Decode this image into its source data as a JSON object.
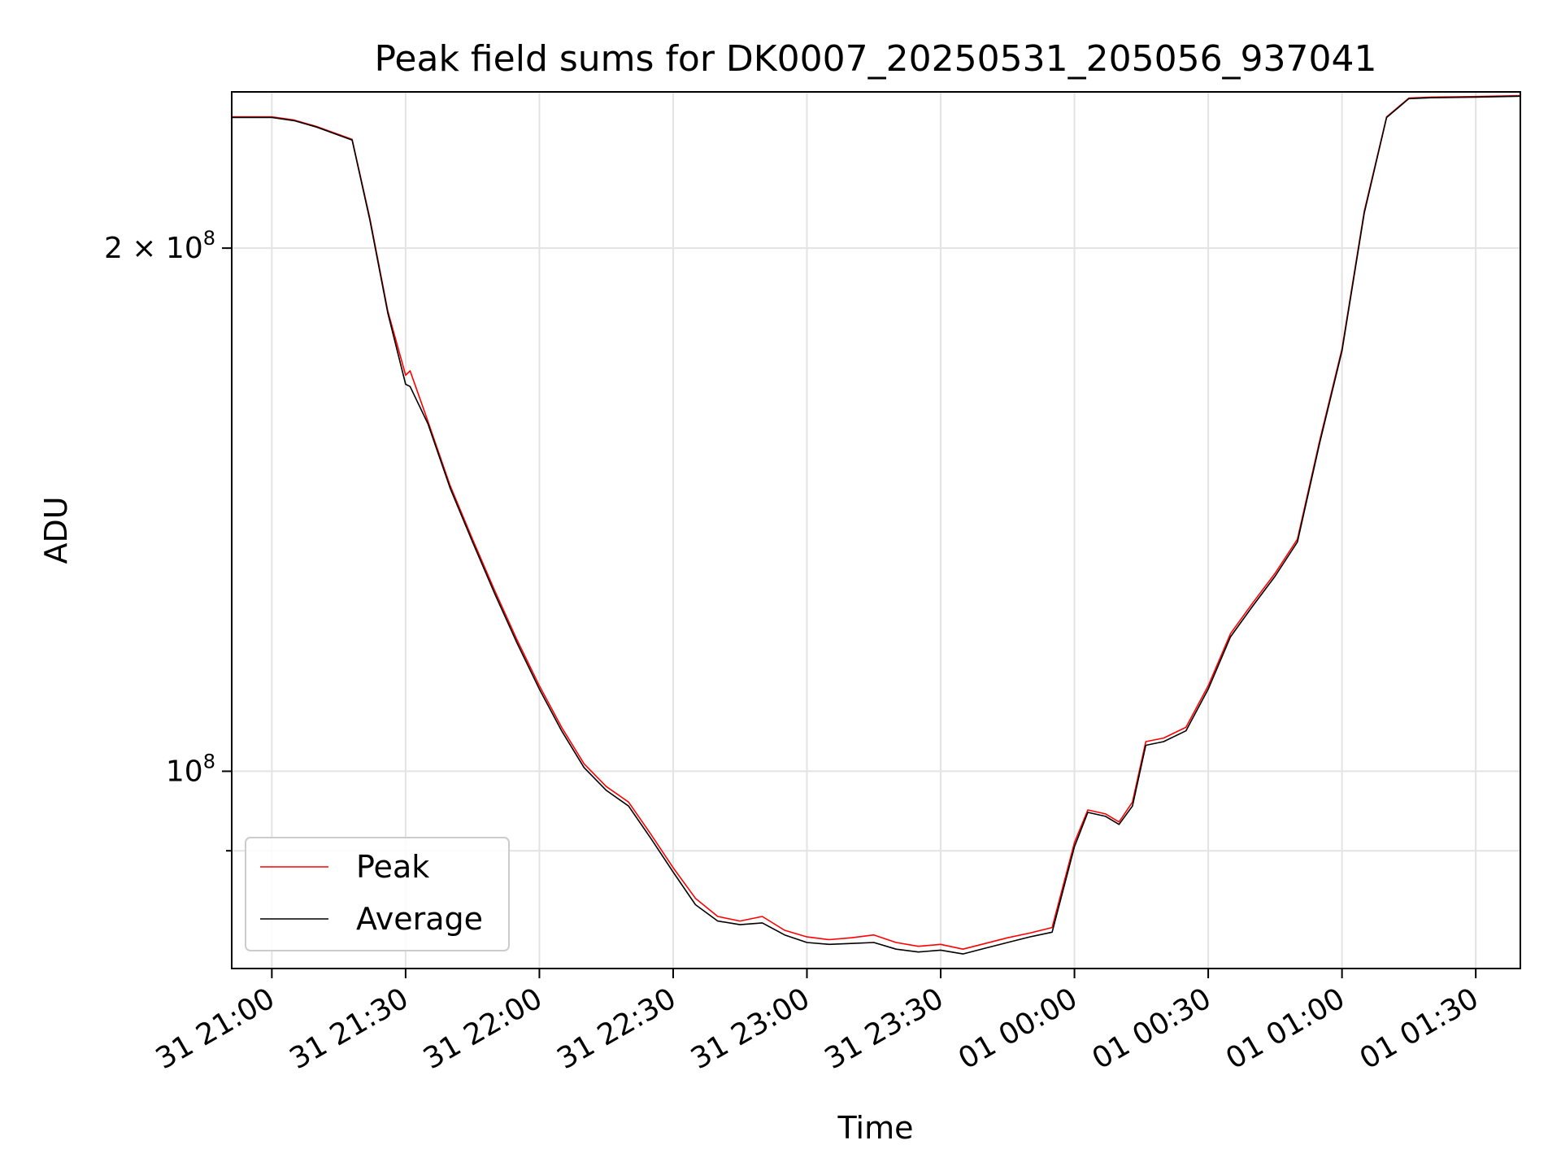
{
  "chart_data": {
    "type": "line",
    "title": "Peak field sums for DK0007_20250531_205056_937041",
    "xlabel": "Time",
    "ylabel": "ADU",
    "y_scale": "log",
    "xlim": [
      "2025-05-31 20:51",
      "2025-06-01 01:40"
    ],
    "ylim": [
      77000000,
      246000000
    ],
    "grid": true,
    "legend_position": "lower left",
    "x_ticks": [
      "31 21:00",
      "31 21:30",
      "31 22:00",
      "31 22:30",
      "31 23:00",
      "31 23:30",
      "01 00:00",
      "01 00:30",
      "01 01:00",
      "01 01:30"
    ],
    "y_ticks": [
      {
        "value": 100000000,
        "base": "10",
        "exp": "8",
        "coef": ""
      },
      {
        "value": 200000000,
        "base": "10",
        "exp": "8",
        "coef": "2 × "
      }
    ],
    "y_minor_ticks": [
      90000000
    ],
    "series": [
      {
        "name": "Peak",
        "color": "#ff0000",
        "x": [
          "2025-05-31 20:51",
          "2025-05-31 21:00",
          "2025-05-31 21:05",
          "2025-05-31 21:10",
          "2025-05-31 21:15",
          "2025-05-31 21:18",
          "2025-05-31 21:22",
          "2025-05-31 21:26",
          "2025-05-31 21:30",
          "2025-05-31 21:31",
          "2025-05-31 21:35",
          "2025-05-31 21:40",
          "2025-05-31 21:45",
          "2025-05-31 21:50",
          "2025-05-31 21:55",
          "2025-05-31 22:00",
          "2025-05-31 22:05",
          "2025-05-31 22:10",
          "2025-05-31 22:15",
          "2025-05-31 22:20",
          "2025-05-31 22:25",
          "2025-05-31 22:30",
          "2025-05-31 22:35",
          "2025-05-31 22:40",
          "2025-05-31 22:45",
          "2025-05-31 22:50",
          "2025-05-31 22:55",
          "2025-05-31 23:00",
          "2025-05-31 23:05",
          "2025-05-31 23:10",
          "2025-05-31 23:15",
          "2025-05-31 23:20",
          "2025-05-31 23:25",
          "2025-05-31 23:30",
          "2025-05-31 23:35",
          "2025-05-31 23:40",
          "2025-05-31 23:45",
          "2025-05-31 23:50",
          "2025-05-31 23:55",
          "2025-06-01 00:00",
          "2025-06-01 00:03",
          "2025-06-01 00:07",
          "2025-06-01 00:10",
          "2025-06-01 00:13",
          "2025-06-01 00:16",
          "2025-06-01 00:20",
          "2025-06-01 00:25",
          "2025-06-01 00:30",
          "2025-06-01 00:35",
          "2025-06-01 00:40",
          "2025-06-01 00:45",
          "2025-06-01 00:50",
          "2025-06-01 00:55",
          "2025-06-01 01:00",
          "2025-06-01 01:05",
          "2025-06-01 01:10",
          "2025-06-01 01:15",
          "2025-06-01 01:20",
          "2025-06-01 01:30",
          "2025-06-01 01:40"
        ],
        "y": [
          238000000,
          238000000,
          237000000,
          235000000,
          232500000,
          231000000,
          208000000,
          184000000,
          169000000,
          170000000,
          159000000,
          146000000,
          136000000,
          127000000,
          119000000,
          112000000,
          106000000,
          101000000,
          98000000,
          96000000,
          92000000,
          88000000,
          84500000,
          82500000,
          82000000,
          82500000,
          81000000,
          80300000,
          80000000,
          80200000,
          80500000,
          79700000,
          79300000,
          79500000,
          79000000,
          79600000,
          80200000,
          80700000,
          81300000,
          91000000,
          95000000,
          94500000,
          93500000,
          96000000,
          104000000,
          104500000,
          106000000,
          112000000,
          120000000,
          125000000,
          130000000,
          136000000,
          155000000,
          175000000,
          210000000,
          238000000,
          244000000,
          244300000,
          244500000,
          244800000
        ]
      },
      {
        "name": "Average",
        "color": "#000000",
        "x": [
          "2025-05-31 20:51",
          "2025-05-31 21:00",
          "2025-05-31 21:05",
          "2025-05-31 21:10",
          "2025-05-31 21:15",
          "2025-05-31 21:18",
          "2025-05-31 21:22",
          "2025-05-31 21:26",
          "2025-05-31 21:30",
          "2025-05-31 21:31",
          "2025-05-31 21:35",
          "2025-05-31 21:40",
          "2025-05-31 21:45",
          "2025-05-31 21:50",
          "2025-05-31 21:55",
          "2025-05-31 22:00",
          "2025-05-31 22:05",
          "2025-05-31 22:10",
          "2025-05-31 22:15",
          "2025-05-31 22:20",
          "2025-05-31 22:25",
          "2025-05-31 22:30",
          "2025-05-31 22:35",
          "2025-05-31 22:40",
          "2025-05-31 22:45",
          "2025-05-31 22:50",
          "2025-05-31 22:55",
          "2025-05-31 23:00",
          "2025-05-31 23:05",
          "2025-05-31 23:10",
          "2025-05-31 23:15",
          "2025-05-31 23:20",
          "2025-05-31 23:25",
          "2025-05-31 23:30",
          "2025-05-31 23:35",
          "2025-05-31 23:40",
          "2025-05-31 23:45",
          "2025-05-31 23:50",
          "2025-05-31 23:55",
          "2025-06-01 00:00",
          "2025-06-01 00:03",
          "2025-06-01 00:07",
          "2025-06-01 00:10",
          "2025-06-01 00:13",
          "2025-06-01 00:16",
          "2025-06-01 00:20",
          "2025-06-01 00:25",
          "2025-06-01 00:30",
          "2025-06-01 00:35",
          "2025-06-01 00:40",
          "2025-06-01 00:45",
          "2025-06-01 00:50",
          "2025-06-01 00:55",
          "2025-06-01 01:00",
          "2025-06-01 01:05",
          "2025-06-01 01:10",
          "2025-06-01 01:15",
          "2025-06-01 01:20",
          "2025-06-01 01:30",
          "2025-06-01 01:40"
        ],
        "y": [
          237800000,
          237800000,
          236800000,
          234800000,
          232300000,
          230800000,
          207500000,
          183500000,
          167000000,
          166500000,
          158500000,
          145500000,
          135500000,
          126500000,
          118500000,
          111500000,
          105500000,
          100500000,
          97500000,
          95500000,
          91500000,
          87500000,
          83800000,
          82000000,
          81600000,
          81800000,
          80500000,
          79700000,
          79500000,
          79600000,
          79700000,
          79000000,
          78700000,
          78900000,
          78500000,
          79100000,
          79700000,
          80300000,
          80800000,
          90500000,
          94700000,
          94200000,
          93200000,
          95500000,
          103500000,
          104000000,
          105500000,
          111500000,
          119500000,
          124500000,
          129500000,
          135500000,
          154500000,
          174500000,
          209500000,
          237800000,
          243800000,
          244100000,
          244300000,
          244600000
        ]
      }
    ]
  }
}
